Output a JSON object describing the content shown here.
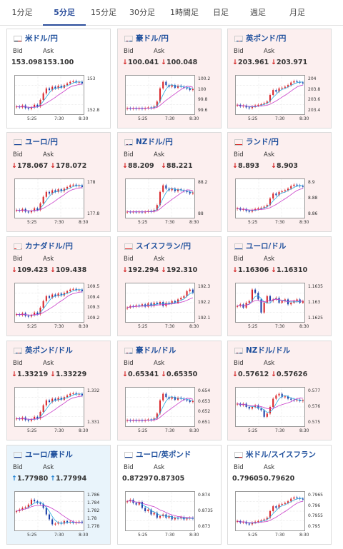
{
  "tabs": [
    {
      "label": "1分足",
      "active": false
    },
    {
      "label": "5分足",
      "active": true
    },
    {
      "label": "15分足",
      "active": false
    },
    {
      "label": "30分足",
      "active": false
    },
    {
      "label": "1時間足",
      "active": false
    },
    {
      "label": "日足",
      "active": false
    },
    {
      "label": "週足",
      "active": false
    },
    {
      "label": "月足",
      "active": false
    }
  ],
  "labels": {
    "bid": "Bid",
    "ask": "Ask",
    "down_arrow": "↓",
    "up_arrow": "↑"
  },
  "cards": [
    {
      "title": "米ドル/円",
      "bg": "white",
      "flag": "us",
      "dir": "none",
      "bid": "153.098",
      "ask": "153.100",
      "yticks": [
        "153",
        "152.8"
      ],
      "xticks": [
        "5:25",
        "7:30",
        "8:30"
      ],
      "shape": "upA"
    },
    {
      "title": "豪ドル/円",
      "bg": "pink",
      "flag": "au",
      "dir": "down",
      "bid": "100.041",
      "ask": "100.048",
      "yticks": [
        "100.2",
        "100",
        "99.8",
        "99.6"
      ],
      "xticks": [
        "5:25",
        "7:30",
        "8:30"
      ],
      "shape": "jumpMid"
    },
    {
      "title": "英ポンド/円",
      "bg": "pink",
      "flag": "gb",
      "dir": "down",
      "bid": "203.961",
      "ask": "203.971",
      "yticks": [
        "204",
        "203.8",
        "203.6",
        "203.4"
      ],
      "xticks": [
        "5:25",
        "7:30",
        "8:30"
      ],
      "shape": "upB"
    },
    {
      "title": "ユーロ/円",
      "bg": "pink",
      "flag": "eu",
      "dir": "down",
      "bid": "178.067",
      "ask": "178.072",
      "yticks": [
        "178",
        "177.8"
      ],
      "xticks": [
        "5:25",
        "7:30",
        "8:30"
      ],
      "shape": "upA"
    },
    {
      "title": "NZドル/円",
      "bg": "pink",
      "flag": "nz",
      "dir": "down",
      "bid": "88.209",
      "ask": "88.221",
      "yticks": [
        "88.2",
        "88"
      ],
      "xticks": [
        "5:25",
        "7:30",
        "8:30"
      ],
      "shape": "jumpMid"
    },
    {
      "title": "ランド/円",
      "bg": "pink",
      "flag": "za",
      "dir": "down",
      "bid": "8.893",
      "ask": "8.903",
      "yticks": [
        "8.9",
        "8.88",
        "8.86"
      ],
      "xticks": [
        "5:25",
        "7:30",
        "8:30"
      ],
      "shape": "upB"
    },
    {
      "title": "カナダドル/円",
      "bg": "pink",
      "flag": "ca",
      "dir": "down",
      "bid": "109.423",
      "ask": "109.438",
      "yticks": [
        "109.5",
        "109.4",
        "109.3",
        "109.2"
      ],
      "xticks": [
        "5:25",
        "7:30",
        "8:30"
      ],
      "shape": "upA"
    },
    {
      "title": "スイスフラン/円",
      "bg": "pink",
      "flag": "ch",
      "dir": "down",
      "bid": "192.294",
      "ask": "192.310",
      "yticks": [
        "192.3",
        "192.2",
        "192.1"
      ],
      "xticks": [
        "5:25",
        "7:30",
        "8:30"
      ],
      "shape": "flatUp"
    },
    {
      "title": "ユーロ/ドル",
      "bg": "pink",
      "flag": "eu",
      "dir": "down",
      "bid": "1.16306",
      "ask": "1.16310",
      "yticks": [
        "1.1635",
        "1.163",
        "1.1625"
      ],
      "xticks": [
        "5:25",
        "7:30",
        "8:30"
      ],
      "shape": "spiky"
    },
    {
      "title": "英ポンド/ドル",
      "bg": "pink",
      "flag": "gb",
      "dir": "down",
      "bid": "1.33219",
      "ask": "1.33229",
      "yticks": [
        "1.332",
        "1.331"
      ],
      "xticks": [
        "5:25",
        "7:30",
        "8:30"
      ],
      "shape": "upA"
    },
    {
      "title": "豪ドル/ドル",
      "bg": "pink",
      "flag": "au",
      "dir": "down",
      "bid": "0.65341",
      "ask": "0.65350",
      "yticks": [
        "0.654",
        "0.653",
        "0.652",
        "0.651"
      ],
      "xticks": [
        "5:25",
        "7:30",
        "8:30"
      ],
      "shape": "jumpMid"
    },
    {
      "title": "NZドル/ドル",
      "bg": "pink",
      "flag": "nz",
      "dir": "down",
      "bid": "0.57612",
      "ask": "0.57626",
      "yticks": [
        "0.577",
        "0.576",
        "0.575"
      ],
      "xticks": [
        "5:25",
        "7:30",
        "8:30"
      ],
      "shape": "dipUp"
    },
    {
      "title": "ユーロ/豪ドル",
      "bg": "blue",
      "flag": "eu",
      "dir": "up",
      "bid": "1.77980",
      "ask": "1.77994",
      "yticks": [
        "1.786",
        "1.784",
        "1.782",
        "1.78",
        "1.778"
      ],
      "xticks": [
        "5:25",
        "7:30",
        "8:30"
      ],
      "shape": "dropMid"
    },
    {
      "title": "ユーロ/英ポンド",
      "bg": "white",
      "flag": "eu",
      "dir": "none",
      "bid": "0.87297",
      "ask": "0.87305",
      "yticks": [
        "0.874",
        "0.8735",
        "0.873"
      ],
      "xticks": [
        "5:25",
        "7:30",
        "8:30"
      ],
      "shape": "downA"
    },
    {
      "title": "米ドル/スイスフラン",
      "bg": "white",
      "flag": "us",
      "dir": "none",
      "bid": "0.79605",
      "ask": "0.79620",
      "yticks": [
        "0.7965",
        "0.796",
        "0.7955",
        "0.795"
      ],
      "xticks": [
        "5:25",
        "7:30",
        "8:30"
      ],
      "shape": "upB"
    }
  ]
}
